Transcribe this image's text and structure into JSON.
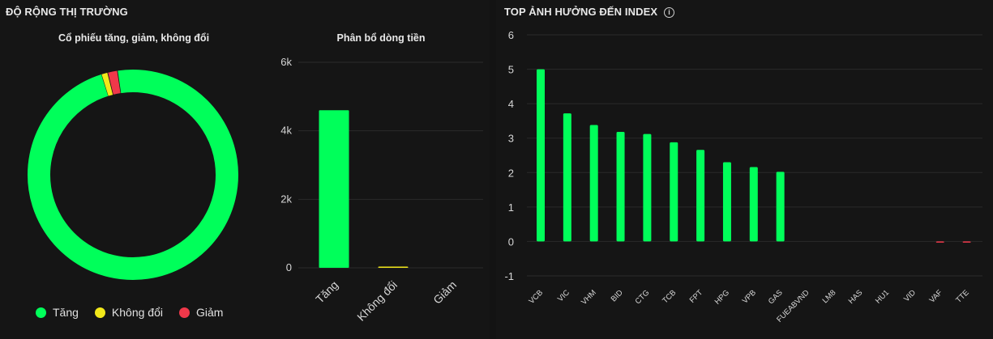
{
  "market_breadth": {
    "title": "ĐỘ RỘNG THỊ TRƯỜNG",
    "donut_title": "Cổ phiếu tăng, giảm, không đổi",
    "bar_title": "Phân bổ dòng tiền",
    "legend": [
      "Tăng",
      "Không đổi",
      "Giảm"
    ]
  },
  "top_influence": {
    "title": "TOP ẢNH HƯỞNG ĐẾN INDEX"
  },
  "colors": {
    "up": "#00ff5a",
    "flat": "#f2e81a",
    "down": "#f0384a",
    "grid": "#2a2a2a",
    "axis_text": "#d6d6d6"
  },
  "chart_data": [
    {
      "type": "pie",
      "title": "Cổ phiếu tăng, giảm, không đổi",
      "categories": [
        "Tăng",
        "Không đổi",
        "Giảm"
      ],
      "values": [
        97.5,
        1.0,
        1.5
      ]
    },
    {
      "type": "bar",
      "title": "Phân bổ dòng tiền",
      "categories": [
        "Tăng",
        "Không đổi",
        "Giảm"
      ],
      "values": [
        4600,
        15,
        0
      ],
      "ylim": [
        0,
        6000
      ],
      "yticks": [
        "0",
        "2k",
        "4k",
        "6k"
      ]
    },
    {
      "type": "bar",
      "title": "TOP ẢNH HƯỞNG ĐẾN INDEX",
      "categories": [
        "VCB",
        "VIC",
        "VHM",
        "BID",
        "CTG",
        "TCB",
        "FPT",
        "HPG",
        "VPB",
        "GAS",
        "FUEABVND",
        "LM8",
        "HAS",
        "HU1",
        "VID",
        "VAF",
        "TTE"
      ],
      "values": [
        5.0,
        3.72,
        3.38,
        3.18,
        3.12,
        2.88,
        2.66,
        2.3,
        2.16,
        2.02,
        0,
        0,
        0,
        0,
        0,
        -0.02,
        -0.02
      ],
      "ylim": [
        -1,
        6
      ],
      "yticks": [
        "-1",
        "0",
        "1",
        "2",
        "3",
        "4",
        "5",
        "6"
      ]
    }
  ]
}
